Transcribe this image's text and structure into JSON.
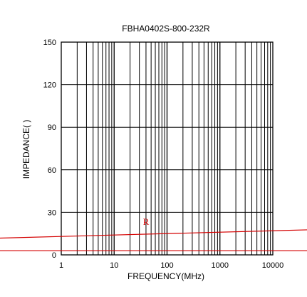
{
  "chart_data": {
    "type": "line",
    "title": "FBHA0402S-800-232R",
    "xlabel": "FREQUENCY(MHz)",
    "ylabel": "IMPEDANCE( )",
    "x_scale": "log",
    "xlim": [
      1,
      10000
    ],
    "ylim": [
      0,
      150
    ],
    "x_tick_labels": [
      "1",
      "10",
      "100",
      "1000",
      "10000"
    ],
    "y_tick_labels": [
      "0",
      "30",
      "60",
      "90",
      "120",
      "150"
    ],
    "grid": true,
    "annotations": [
      {
        "text": "R",
        "color": "#d40000"
      }
    ],
    "series": [
      {
        "color": "#d40000",
        "points": [
          [
            1,
            13
          ],
          [
            10000,
            17
          ]
        ]
      },
      {
        "color": "#d40000",
        "points": [
          [
            1,
            3
          ],
          [
            10000,
            3
          ]
        ]
      }
    ]
  }
}
